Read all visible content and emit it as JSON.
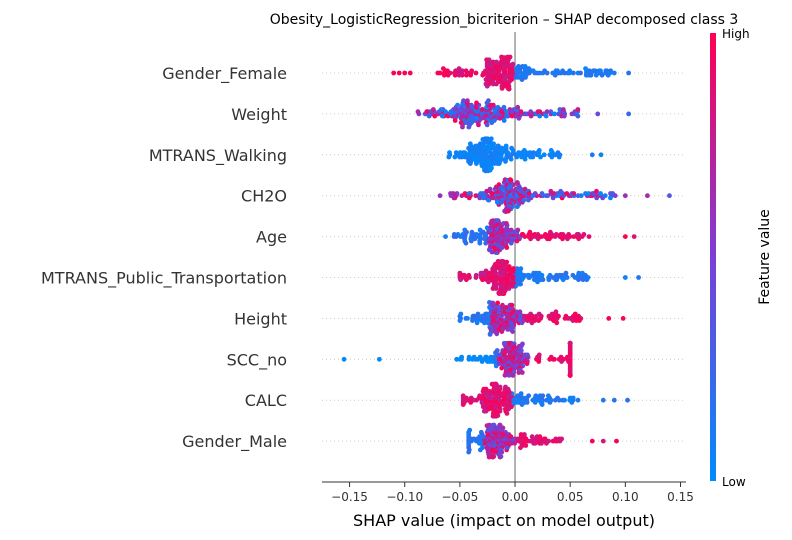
{
  "chart_data": {
    "type": "scatter",
    "subtype": "shap-beeswarm",
    "title": "Obesity_LogisticRegression_bicriterion – SHAP decomposed class 3",
    "xlabel": "SHAP value (impact on model output)",
    "xlim": [
      -0.175,
      0.155
    ],
    "xticks": [
      -0.15,
      -0.1,
      -0.05,
      0.0,
      0.05,
      0.1,
      0.15
    ],
    "xtick_labels": [
      "−0.15",
      "−0.10",
      "−0.05",
      "0.00",
      "0.05",
      "0.10",
      "0.15"
    ],
    "grid": false,
    "zero_line": true,
    "colorbar": {
      "label": "Feature value",
      "high_label": "High",
      "low_label": "Low",
      "low_color": "#008bfb",
      "mid_color": "#7b3fd6",
      "high_color": "#ff0052"
    },
    "features": [
      {
        "name": "Gender_Female",
        "min": -0.115,
        "max": 0.103,
        "low_side": "positive",
        "core_center": -0.012,
        "core_spread": 0.018,
        "n": 220,
        "outliers": [
          -0.11,
          -0.105,
          -0.1,
          -0.095,
          -0.07,
          -0.065,
          0.09,
          0.103
        ]
      },
      {
        "name": "Weight",
        "min": -0.088,
        "max": 0.103,
        "low_side": "mixed",
        "core_center": -0.035,
        "core_spread": 0.03,
        "n": 220,
        "outliers": [
          -0.088,
          -0.08,
          0.075,
          0.103
        ]
      },
      {
        "name": "MTRANS_Walking",
        "min": -0.06,
        "max": 0.078,
        "low_side": "all-low",
        "core_center": -0.026,
        "core_spread": 0.015,
        "n": 200,
        "outliers": [
          0.07,
          0.078
        ]
      },
      {
        "name": "CH2O",
        "min": -0.068,
        "max": 0.14,
        "low_side": "mixed",
        "core_center": -0.005,
        "core_spread": 0.02,
        "n": 200,
        "outliers": [
          -0.068,
          0.1,
          0.12,
          0.14
        ]
      },
      {
        "name": "Age",
        "min": -0.063,
        "max": 0.108,
        "low_side": "negative",
        "core_center": -0.015,
        "core_spread": 0.018,
        "n": 200,
        "outliers": [
          -0.063,
          0.1,
          0.108
        ]
      },
      {
        "name": "MTRANS_Public_Transportation",
        "min": -0.05,
        "max": 0.112,
        "low_side": "positive",
        "core_center": -0.012,
        "core_spread": 0.012,
        "n": 210,
        "outliers": [
          0.1,
          0.112
        ]
      },
      {
        "name": "Height",
        "min": -0.05,
        "max": 0.098,
        "low_side": "negative",
        "core_center": -0.012,
        "core_spread": 0.02,
        "n": 200,
        "outliers": [
          0.085,
          0.098
        ]
      },
      {
        "name": "SCC_no",
        "min": -0.155,
        "max": 0.05,
        "low_side": "negative",
        "core_center": -0.005,
        "core_spread": 0.013,
        "n": 200,
        "outliers": [
          -0.155,
          -0.123
        ]
      },
      {
        "name": "CALC",
        "min": -0.047,
        "max": 0.102,
        "low_side": "positive",
        "core_center": -0.015,
        "core_spread": 0.015,
        "n": 190,
        "outliers": [
          0.08,
          0.09,
          0.102
        ]
      },
      {
        "name": "Gender_Male",
        "min": -0.042,
        "max": 0.092,
        "low_side": "negative",
        "core_center": -0.018,
        "core_spread": 0.012,
        "n": 190,
        "outliers": [
          0.07,
          0.08,
          0.092
        ]
      }
    ]
  }
}
